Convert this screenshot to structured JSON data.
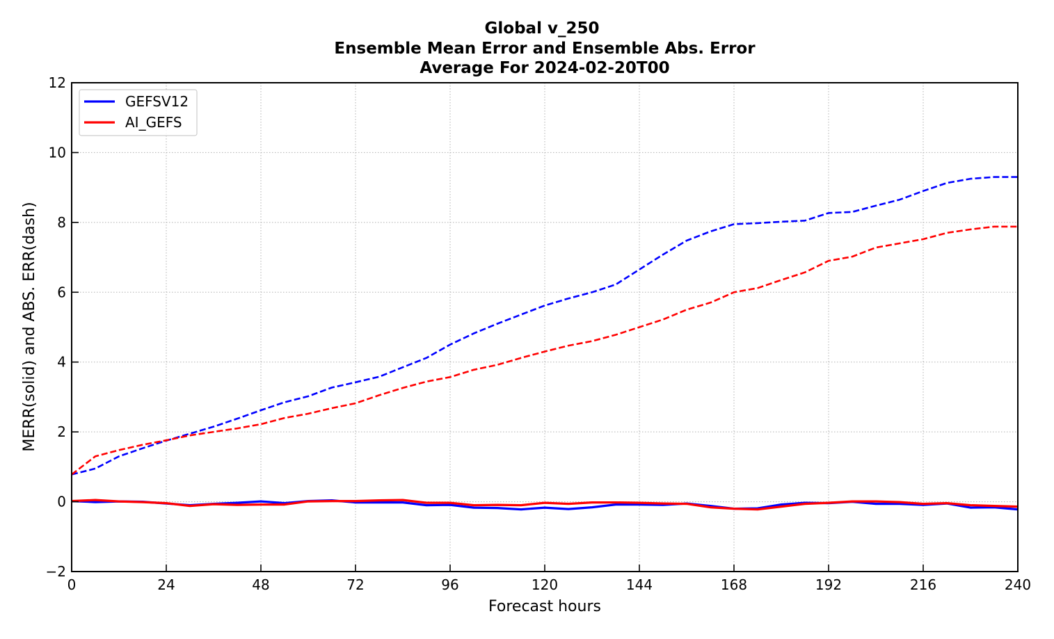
{
  "chart_data": {
    "type": "line",
    "title_lines": [
      "Global v_250",
      "Ensemble Mean Error and Ensemble Abs. Error",
      "Average For 2024-02-20T00"
    ],
    "xlabel": "Forecast hours",
    "ylabel": "MERR(solid) and ABS. ERR(dash)",
    "xlim": [
      0,
      240
    ],
    "ylim": [
      -2,
      12
    ],
    "xticks": [
      0,
      24,
      48,
      72,
      96,
      120,
      144,
      168,
      192,
      216,
      240
    ],
    "yticks": [
      -2,
      0,
      2,
      4,
      6,
      8,
      10,
      12
    ],
    "ytick_labels": [
      "−2",
      "0",
      "2",
      "4",
      "6",
      "8",
      "10",
      "12"
    ],
    "grid": true,
    "legend_position": "top-left",
    "x": [
      0,
      6,
      12,
      18,
      24,
      30,
      36,
      42,
      48,
      54,
      60,
      66,
      72,
      78,
      84,
      90,
      96,
      102,
      108,
      114,
      120,
      126,
      132,
      138,
      144,
      150,
      156,
      162,
      168,
      174,
      180,
      186,
      192,
      198,
      204,
      210,
      216,
      222,
      228,
      234,
      240
    ],
    "series": [
      {
        "name": "GEFSV12",
        "color": "#0000ff",
        "merr": [
          0.02,
          -0.01,
          0.01,
          0.0,
          -0.05,
          -0.1,
          -0.06,
          -0.03,
          0.01,
          -0.04,
          0.02,
          0.04,
          -0.02,
          -0.02,
          -0.02,
          -0.1,
          -0.09,
          -0.17,
          -0.18,
          -0.22,
          -0.17,
          -0.21,
          -0.16,
          -0.08,
          -0.08,
          -0.09,
          -0.05,
          -0.12,
          -0.2,
          -0.19,
          -0.08,
          -0.03,
          -0.04,
          0.0,
          -0.06,
          -0.06,
          -0.09,
          -0.05,
          -0.17,
          -0.16,
          -0.22
        ],
        "abs_err": [
          0.78,
          0.95,
          1.3,
          1.53,
          1.75,
          1.95,
          2.15,
          2.38,
          2.62,
          2.85,
          3.02,
          3.27,
          3.42,
          3.58,
          3.85,
          4.12,
          4.5,
          4.82,
          5.1,
          5.36,
          5.62,
          5.82,
          6.0,
          6.22,
          6.65,
          7.08,
          7.48,
          7.74,
          7.95,
          7.98,
          8.02,
          8.05,
          8.27,
          8.3,
          8.48,
          8.65,
          8.9,
          9.13,
          9.25,
          9.3,
          9.3
        ]
      },
      {
        "name": "AI_GEFS",
        "color": "#ff0000",
        "merr": [
          0.02,
          0.05,
          0.01,
          -0.01,
          -0.04,
          -0.12,
          -0.07,
          -0.09,
          -0.08,
          -0.08,
          0.01,
          0.02,
          0.02,
          0.04,
          0.05,
          -0.03,
          -0.03,
          -0.1,
          -0.09,
          -0.1,
          -0.03,
          -0.06,
          -0.02,
          -0.02,
          -0.03,
          -0.05,
          -0.06,
          -0.16,
          -0.2,
          -0.22,
          -0.14,
          -0.06,
          -0.03,
          0.01,
          0.01,
          -0.01,
          -0.06,
          -0.04,
          -0.1,
          -0.12,
          -0.14
        ],
        "abs_err": [
          0.78,
          1.3,
          1.48,
          1.63,
          1.76,
          1.9,
          2.0,
          2.1,
          2.22,
          2.4,
          2.52,
          2.68,
          2.82,
          3.05,
          3.26,
          3.44,
          3.57,
          3.78,
          3.92,
          4.12,
          4.3,
          4.47,
          4.6,
          4.78,
          5.0,
          5.22,
          5.5,
          5.7,
          6.0,
          6.12,
          6.35,
          6.57,
          6.9,
          7.02,
          7.28,
          7.4,
          7.52,
          7.7,
          7.8,
          7.88,
          7.88
        ]
      }
    ]
  }
}
